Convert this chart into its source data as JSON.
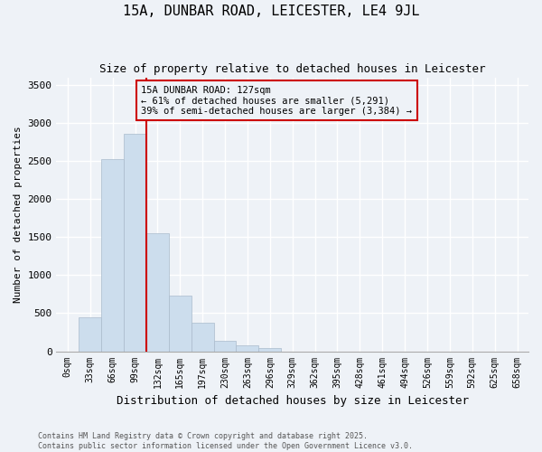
{
  "title": "15A, DUNBAR ROAD, LEICESTER, LE4 9JL",
  "subtitle": "Size of property relative to detached houses in Leicester",
  "xlabel": "Distribution of detached houses by size in Leicester",
  "ylabel": "Number of detached properties",
  "bar_color": "#ccdded",
  "bar_edge_color": "#aabbcc",
  "categories": [
    "0sqm",
    "33sqm",
    "66sqm",
    "99sqm",
    "132sqm",
    "165sqm",
    "197sqm",
    "230sqm",
    "263sqm",
    "296sqm",
    "329sqm",
    "362sqm",
    "395sqm",
    "428sqm",
    "461sqm",
    "494sqm",
    "526sqm",
    "559sqm",
    "592sqm",
    "625sqm",
    "658sqm"
  ],
  "values": [
    0,
    450,
    2520,
    2860,
    1550,
    730,
    380,
    140,
    80,
    40,
    0,
    0,
    0,
    0,
    0,
    0,
    0,
    0,
    0,
    0,
    0
  ],
  "ylim": [
    0,
    3600
  ],
  "yticks": [
    0,
    500,
    1000,
    1500,
    2000,
    2500,
    3000,
    3500
  ],
  "property_line_x": 4,
  "annotation_text": "15A DUNBAR ROAD: 127sqm\n← 61% of detached houses are smaller (5,291)\n39% of semi-detached houses are larger (3,384) →",
  "annotation_box_color": "#cc0000",
  "footer_line1": "Contains HM Land Registry data © Crown copyright and database right 2025.",
  "footer_line2": "Contains public sector information licensed under the Open Government Licence v3.0.",
  "background_color": "#eef2f7",
  "grid_color": "#ffffff"
}
